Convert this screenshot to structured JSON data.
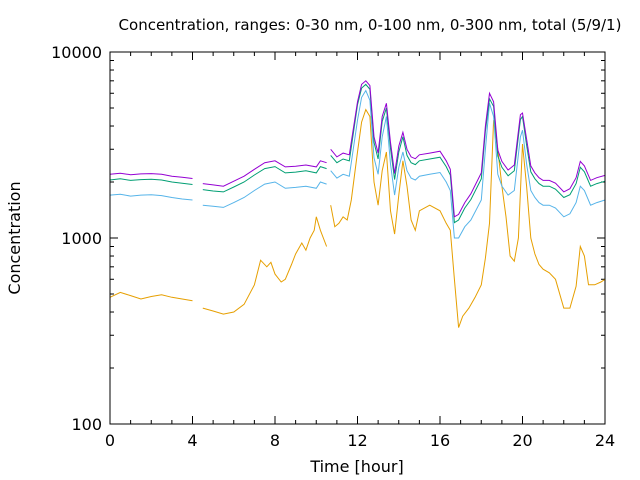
{
  "chart_data": {
    "type": "line",
    "title": "Concentration, ranges: 0-30 nm, 0-100 nm, 0-300 nm, total (5/9/1)",
    "xlabel": "Time [hour]",
    "ylabel": "Concentration",
    "xlim": [
      0,
      24
    ],
    "ylim": [
      100,
      10000
    ],
    "yscale": "log",
    "grid": false,
    "legend": "none",
    "x_ticks": [
      0,
      4,
      8,
      12,
      16,
      20,
      24
    ],
    "x_tick_labels": [
      "0",
      "4",
      "8",
      "12",
      "16",
      "20",
      "24"
    ],
    "y_ticks": [
      100,
      1000,
      10000
    ],
    "y_tick_labels": [
      "100",
      "1000",
      "10000"
    ],
    "gaps": [
      [
        4.0,
        4.4
      ],
      [
        10.5,
        10.6
      ]
    ],
    "series": [
      {
        "color": "#e69f00",
        "x": [
          0,
          0.5,
          1,
          1.5,
          2,
          2.5,
          3,
          3.5,
          4,
          4.5,
          5,
          5.5,
          6,
          6.5,
          7,
          7.3,
          7.6,
          7.8,
          8,
          8.3,
          8.5,
          8.8,
          9,
          9.3,
          9.5,
          9.7,
          9.9,
          10,
          10.2,
          10.5,
          10.7,
          10.9,
          11.1,
          11.3,
          11.5,
          11.7,
          12,
          12.2,
          12.4,
          12.6,
          12.8,
          13,
          13.2,
          13.4,
          13.6,
          13.8,
          14,
          14.2,
          14.4,
          14.6,
          14.8,
          15,
          15.5,
          16,
          16.3,
          16.5,
          16.7,
          16.9,
          17.1,
          17.4,
          17.7,
          18,
          18.2,
          18.4,
          18.6,
          18.8,
          19,
          19.2,
          19.4,
          19.6,
          19.8,
          20,
          20.2,
          20.4,
          20.6,
          20.8,
          21,
          21.3,
          21.6,
          22,
          22.3,
          22.6,
          22.8,
          23,
          23.2,
          23.5,
          23.8,
          24
        ],
        "y": [
          480,
          510,
          490,
          470,
          485,
          495,
          480,
          470,
          460,
          420,
          405,
          390,
          400,
          440,
          560,
          760,
          700,
          740,
          640,
          580,
          600,
          720,
          820,
          940,
          860,
          1000,
          1100,
          1300,
          1100,
          900,
          1500,
          1150,
          1200,
          1300,
          1250,
          1600,
          2900,
          4200,
          4900,
          4500,
          2000,
          1500,
          2300,
          2900,
          1400,
          1050,
          1700,
          2600,
          1900,
          1250,
          1100,
          1400,
          1500,
          1400,
          1200,
          1100,
          600,
          330,
          380,
          420,
          480,
          560,
          780,
          1200,
          4300,
          3000,
          1900,
          1300,
          800,
          750,
          1000,
          3200,
          1900,
          1000,
          820,
          720,
          680,
          650,
          600,
          420,
          420,
          550,
          900,
          800,
          560,
          560,
          580,
          600
        ]
      },
      {
        "color": "#56b4e9",
        "x": [
          0,
          0.5,
          1,
          1.5,
          2,
          2.5,
          3,
          3.5,
          4,
          4.5,
          5,
          5.5,
          6,
          6.5,
          7,
          7.5,
          8,
          8.5,
          9,
          9.5,
          10,
          10.2,
          10.5,
          10.7,
          11,
          11.3,
          11.6,
          12,
          12.2,
          12.4,
          12.6,
          12.8,
          13,
          13.2,
          13.4,
          13.6,
          13.8,
          14,
          14.2,
          14.4,
          14.6,
          14.8,
          15,
          15.5,
          16,
          16.3,
          16.5,
          16.7,
          16.9,
          17.2,
          17.5,
          18,
          18.2,
          18.4,
          18.6,
          18.8,
          19,
          19.3,
          19.6,
          19.9,
          20,
          20.2,
          20.4,
          20.6,
          20.8,
          21,
          21.3,
          21.6,
          22,
          22.3,
          22.6,
          22.8,
          23,
          23.3,
          23.6,
          24
        ],
        "y": [
          1700,
          1720,
          1680,
          1700,
          1710,
          1690,
          1650,
          1620,
          1600,
          1500,
          1480,
          1460,
          1550,
          1650,
          1800,
          1950,
          2000,
          1850,
          1870,
          1900,
          1850,
          2000,
          1950,
          2300,
          2100,
          2200,
          2150,
          4300,
          5700,
          6200,
          5500,
          2700,
          2200,
          3500,
          4500,
          2500,
          1700,
          2400,
          2900,
          2300,
          2100,
          2050,
          2150,
          2200,
          2250,
          2000,
          1800,
          1000,
          1000,
          1150,
          1250,
          1600,
          3000,
          5300,
          4500,
          2200,
          1900,
          1700,
          1800,
          3500,
          3800,
          2500,
          1800,
          1650,
          1550,
          1500,
          1500,
          1450,
          1300,
          1350,
          1550,
          1900,
          1800,
          1500,
          1550,
          1600
        ]
      },
      {
        "color": "#009e73",
        "x": [
          0,
          0.5,
          1,
          1.5,
          2,
          2.5,
          3,
          3.5,
          4,
          4.5,
          5,
          5.5,
          6,
          6.5,
          7,
          7.5,
          8,
          8.5,
          9,
          9.5,
          10,
          10.2,
          10.5,
          10.7,
          11,
          11.3,
          11.6,
          12,
          12.2,
          12.4,
          12.6,
          12.8,
          13,
          13.2,
          13.4,
          13.6,
          13.8,
          14,
          14.2,
          14.4,
          14.6,
          14.8,
          15,
          15.5,
          16,
          16.3,
          16.5,
          16.7,
          16.9,
          17.2,
          17.5,
          18,
          18.2,
          18.4,
          18.6,
          18.8,
          19,
          19.3,
          19.6,
          19.9,
          20,
          20.2,
          20.4,
          20.6,
          20.8,
          21,
          21.3,
          21.6,
          22,
          22.3,
          22.6,
          22.8,
          23,
          23.3,
          23.6,
          24
        ],
        "y": [
          2050,
          2080,
          2040,
          2060,
          2070,
          2050,
          2000,
          1970,
          1940,
          1820,
          1790,
          1770,
          1880,
          2000,
          2180,
          2360,
          2420,
          2240,
          2260,
          2300,
          2240,
          2420,
          2360,
          2780,
          2540,
          2660,
          2600,
          5200,
          6400,
          6700,
          6300,
          3270,
          2660,
          4230,
          5000,
          3030,
          2060,
          2900,
          3500,
          2780,
          2540,
          2480,
          2600,
          2660,
          2720,
          2420,
          2180,
          1210,
          1250,
          1450,
          1610,
          2080,
          3750,
          5600,
          5100,
          2760,
          2400,
          2160,
          2300,
          4330,
          4500,
          3160,
          2270,
          2080,
          1960,
          1900,
          1900,
          1830,
          1650,
          1710,
          1960,
          2400,
          2270,
          1900,
          1960,
          2020
        ]
      },
      {
        "color": "#9400d3",
        "x": [
          0,
          0.5,
          1,
          1.5,
          2,
          2.5,
          3,
          3.5,
          4,
          4.5,
          5,
          5.5,
          6,
          6.5,
          7,
          7.5,
          8,
          8.5,
          9,
          9.5,
          10,
          10.2,
          10.5,
          10.7,
          11,
          11.3,
          11.6,
          12,
          12.2,
          12.4,
          12.6,
          12.8,
          13,
          13.2,
          13.4,
          13.6,
          13.8,
          14,
          14.2,
          14.4,
          14.6,
          14.8,
          15,
          15.5,
          16,
          16.3,
          16.5,
          16.7,
          16.9,
          17.2,
          17.5,
          18,
          18.2,
          18.4,
          18.6,
          18.8,
          19,
          19.3,
          19.6,
          19.9,
          20,
          20.2,
          20.4,
          20.6,
          20.8,
          21,
          21.3,
          21.6,
          22,
          22.3,
          22.6,
          22.8,
          23,
          23.3,
          23.6,
          24
        ],
        "y": [
          2200,
          2230,
          2190,
          2210,
          2220,
          2200,
          2150,
          2120,
          2090,
          1960,
          1930,
          1900,
          2020,
          2150,
          2340,
          2540,
          2600,
          2410,
          2430,
          2470,
          2410,
          2600,
          2540,
          3000,
          2730,
          2860,
          2800,
          5400,
          6700,
          7000,
          6600,
          3500,
          2860,
          4500,
          5300,
          3260,
          2220,
          3120,
          3700,
          3000,
          2730,
          2670,
          2800,
          2860,
          2930,
          2600,
          2340,
          1300,
          1340,
          1550,
          1730,
          2240,
          4000,
          6000,
          5400,
          2970,
          2580,
          2320,
          2470,
          4600,
          4700,
          3400,
          2440,
          2240,
          2110,
          2040,
          2040,
          1970,
          1770,
          1840,
          2110,
          2580,
          2440,
          2040,
          2110,
          2170
        ]
      }
    ]
  }
}
